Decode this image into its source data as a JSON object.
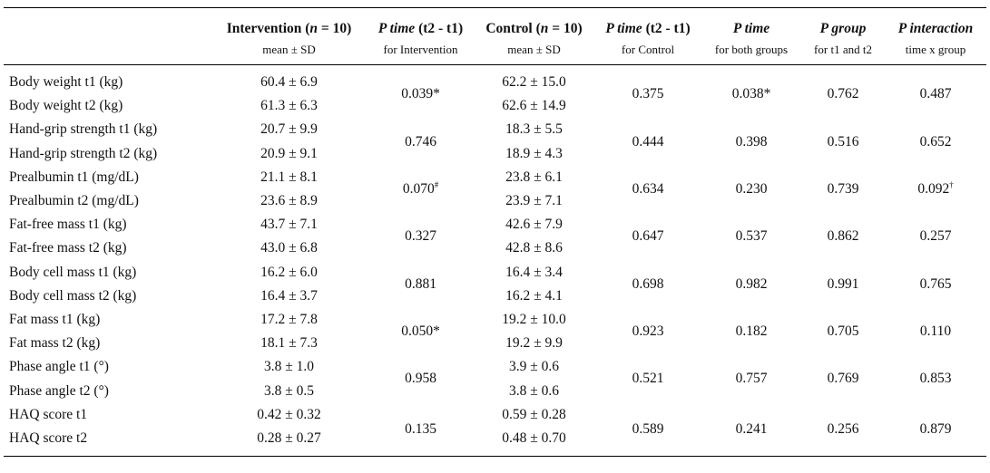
{
  "columns": [
    {
      "title": [
        {
          "text": "Intervention (",
          "italic": false
        },
        {
          "text": "n",
          "italic": true
        },
        {
          "text": " = 10)",
          "italic": false
        }
      ],
      "subtitle": "mean ± SD"
    },
    {
      "title": [
        {
          "text": "P time",
          "italic": true
        },
        {
          "text": " (t2 - t1)",
          "italic": false
        }
      ],
      "subtitle": "for Intervention"
    },
    {
      "title": [
        {
          "text": "Control (",
          "italic": false
        },
        {
          "text": "n",
          "italic": true
        },
        {
          "text": " = 10)",
          "italic": false
        }
      ],
      "subtitle": "mean ± SD"
    },
    {
      "title": [
        {
          "text": "P time",
          "italic": true
        },
        {
          "text": " (t2 - t1)",
          "italic": false
        }
      ],
      "subtitle": "for Control"
    },
    {
      "title": [
        {
          "text": "P time",
          "italic": true
        }
      ],
      "subtitle": "for both groups"
    },
    {
      "title": [
        {
          "text": "P group",
          "italic": true
        }
      ],
      "subtitle": "for t1 and t2"
    },
    {
      "title": [
        {
          "text": "P interaction",
          "italic": true
        }
      ],
      "subtitle": "time x group"
    }
  ],
  "groups": [
    {
      "rows": [
        {
          "label": "Body weight t1 (kg)",
          "intervention": "60.4 ± 6.9",
          "control": "62.2 ± 15.0"
        },
        {
          "label": "Body weight t2 (kg)",
          "intervention": "61.3 ± 6.3",
          "control": "62.6 ± 14.9"
        }
      ],
      "p": [
        "0.039*",
        "0.375",
        "0.038*",
        "0.762",
        "0.487"
      ]
    },
    {
      "rows": [
        {
          "label": "Hand-grip strength t1 (kg)",
          "intervention": "20.7 ± 9.9",
          "control": "18.3 ± 5.5"
        },
        {
          "label": "Hand-grip strength t2 (kg)",
          "intervention": "20.9 ± 9.1",
          "control": "18.9 ± 4.3"
        }
      ],
      "p": [
        "0.746",
        "0.444",
        "0.398",
        "0.516",
        "0.652"
      ]
    },
    {
      "rows": [
        {
          "label": "Prealbumin t1 (mg/dL)",
          "intervention": "21.1 ± 8.1",
          "control": "23.8 ± 6.1"
        },
        {
          "label": "Prealbumin t2 (mg/dL)",
          "intervention": "23.6 ± 8.9",
          "control": "23.9 ± 7.1"
        }
      ],
      "p": [
        {
          "text": "0.070",
          "sup": "#"
        },
        "0.634",
        "0.230",
        "0.739",
        {
          "text": "0.092",
          "sup": "†"
        }
      ]
    },
    {
      "rows": [
        {
          "label": "Fat-free mass t1 (kg)",
          "intervention": "43.7 ± 7.1",
          "control": "42.6 ± 7.9"
        },
        {
          "label": "Fat-free mass t2 (kg)",
          "intervention": "43.0 ± 6.8",
          "control": "42.8 ± 8.6"
        }
      ],
      "p": [
        "0.327",
        "0.647",
        "0.537",
        "0.862",
        "0.257"
      ]
    },
    {
      "rows": [
        {
          "label": "Body cell mass t1 (kg)",
          "intervention": "16.2 ± 6.0",
          "control": "16.4 ± 3.4"
        },
        {
          "label": "Body cell mass t2 (kg)",
          "intervention": "16.4 ± 3.7",
          "control": "16.2 ± 4.1"
        }
      ],
      "p": [
        "0.881",
        "0.698",
        "0.982",
        "0.991",
        "0.765"
      ]
    },
    {
      "rows": [
        {
          "label": "Fat mass t1 (kg)",
          "intervention": "17.2 ± 7.8",
          "control": "19.2 ± 10.0"
        },
        {
          "label": "Fat mass t2 (kg)",
          "intervention": "18.1 ± 7.3",
          "control": "19.2 ± 9.9"
        }
      ],
      "p": [
        "0.050*",
        "0.923",
        "0.182",
        "0.705",
        "0.110"
      ]
    },
    {
      "rows": [
        {
          "label": "Phase angle t1 (°)",
          "intervention": "3.8 ± 1.0",
          "control": "3.9 ± 0.6"
        },
        {
          "label": "Phase angle t2 (°)",
          "intervention": "3.8 ± 0.5",
          "control": "3.8 ± 0.6"
        }
      ],
      "p": [
        "0.958",
        "0.521",
        "0.757",
        "0.769",
        "0.853"
      ]
    },
    {
      "rows": [
        {
          "label": "HAQ score t1",
          "intervention": "0.42 ± 0.32",
          "control": "0.59 ± 0.28"
        },
        {
          "label": "HAQ score t2",
          "intervention": "0.28 ± 0.27",
          "control": "0.48 ± 0.70"
        }
      ],
      "p": [
        "0.135",
        "0.589",
        "0.241",
        "0.256",
        "0.879"
      ]
    }
  ]
}
